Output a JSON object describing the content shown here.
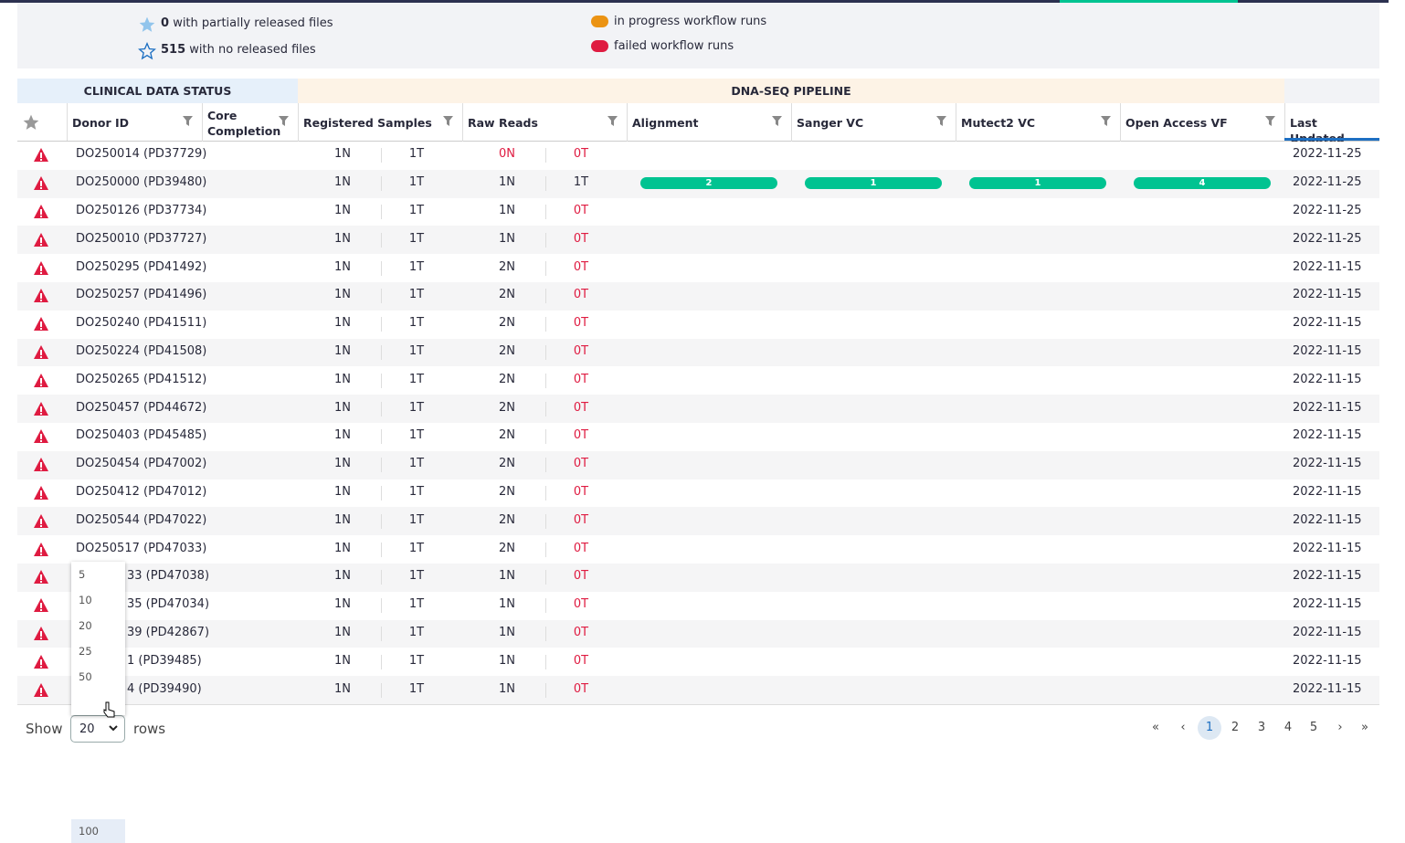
{
  "legend": {
    "items": [
      {
        "count": "0",
        "text": "with partially released files"
      },
      {
        "count": "515",
        "text": "with no released files"
      }
    ],
    "runs": [
      "in progress workflow runs",
      "failed workflow runs"
    ]
  },
  "table": {
    "groups": [
      "CLINICAL DATA STATUS",
      "DNA-SEQ PIPELINE"
    ],
    "columns": [
      "Donor ID",
      "Core Completion",
      "Registered Samples",
      "Raw Reads",
      "Alignment",
      "Sanger VC",
      "Mutect2 VC",
      "Open Access VF",
      "Last Updated"
    ],
    "rows": [
      [
        "DO250014 (PD37729)",
        "1N",
        "1T",
        "0N",
        "0T",
        null,
        null,
        null,
        null,
        "2022-11-25"
      ],
      [
        "DO250000 (PD39480)",
        "1N",
        "1T",
        "1N",
        "1T",
        2,
        1,
        1,
        4,
        "2022-11-25"
      ],
      [
        "DO250126 (PD37734)",
        "1N",
        "1T",
        "1N",
        "0T",
        null,
        null,
        null,
        null,
        "2022-11-25"
      ],
      [
        "DO250010 (PD37727)",
        "1N",
        "1T",
        "1N",
        "0T",
        null,
        null,
        null,
        null,
        "2022-11-25"
      ],
      [
        "DO250295 (PD41492)",
        "1N",
        "1T",
        "2N",
        "0T",
        null,
        null,
        null,
        null,
        "2022-11-15"
      ],
      [
        "DO250257 (PD41496)",
        "1N",
        "1T",
        "2N",
        "0T",
        null,
        null,
        null,
        null,
        "2022-11-15"
      ],
      [
        "DO250240 (PD41511)",
        "1N",
        "1T",
        "2N",
        "0T",
        null,
        null,
        null,
        null,
        "2022-11-15"
      ],
      [
        "DO250224 (PD41508)",
        "1N",
        "1T",
        "2N",
        "0T",
        null,
        null,
        null,
        null,
        "2022-11-15"
      ],
      [
        "DO250265 (PD41512)",
        "1N",
        "1T",
        "2N",
        "0T",
        null,
        null,
        null,
        null,
        "2022-11-15"
      ],
      [
        "DO250457 (PD44672)",
        "1N",
        "1T",
        "2N",
        "0T",
        null,
        null,
        null,
        null,
        "2022-11-15"
      ],
      [
        "DO250403 (PD45485)",
        "1N",
        "1T",
        "2N",
        "0T",
        null,
        null,
        null,
        null,
        "2022-11-15"
      ],
      [
        "DO250454 (PD47002)",
        "1N",
        "1T",
        "2N",
        "0T",
        null,
        null,
        null,
        null,
        "2022-11-15"
      ],
      [
        "DO250412 (PD47012)",
        "1N",
        "1T",
        "2N",
        "0T",
        null,
        null,
        null,
        null,
        "2022-11-15"
      ],
      [
        "DO250544 (PD47022)",
        "1N",
        "1T",
        "2N",
        "0T",
        null,
        null,
        null,
        null,
        "2022-11-15"
      ],
      [
        "DO250517 (PD47033)",
        "1N",
        "1T",
        "2N",
        "0T",
        null,
        null,
        null,
        null,
        "2022-11-15"
      ],
      [
        "33 (PD47038)",
        "1N",
        "1T",
        "1N",
        "0T",
        null,
        null,
        null,
        null,
        "2022-11-15"
      ],
      [
        "35 (PD47034)",
        "1N",
        "1T",
        "1N",
        "0T",
        null,
        null,
        null,
        null,
        "2022-11-15"
      ],
      [
        "39 (PD42867)",
        "1N",
        "1T",
        "1N",
        "0T",
        null,
        null,
        null,
        null,
        "2022-11-15"
      ],
      [
        "1 (PD39485)",
        "1N",
        "1T",
        "1N",
        "0T",
        null,
        null,
        null,
        null,
        "2022-11-15"
      ],
      [
        "4 (PD39490)",
        "1N",
        "1T",
        "1N",
        "0T",
        null,
        null,
        null,
        null,
        "2022-11-15"
      ]
    ]
  },
  "footer": {
    "show": "Show",
    "selected": "20",
    "rows": "rows",
    "options": [
      "5",
      "10",
      "20",
      "25",
      "50",
      "100"
    ],
    "pages": [
      "«",
      "‹",
      "1",
      "2",
      "3",
      "4",
      "5",
      "›",
      "»"
    ]
  }
}
